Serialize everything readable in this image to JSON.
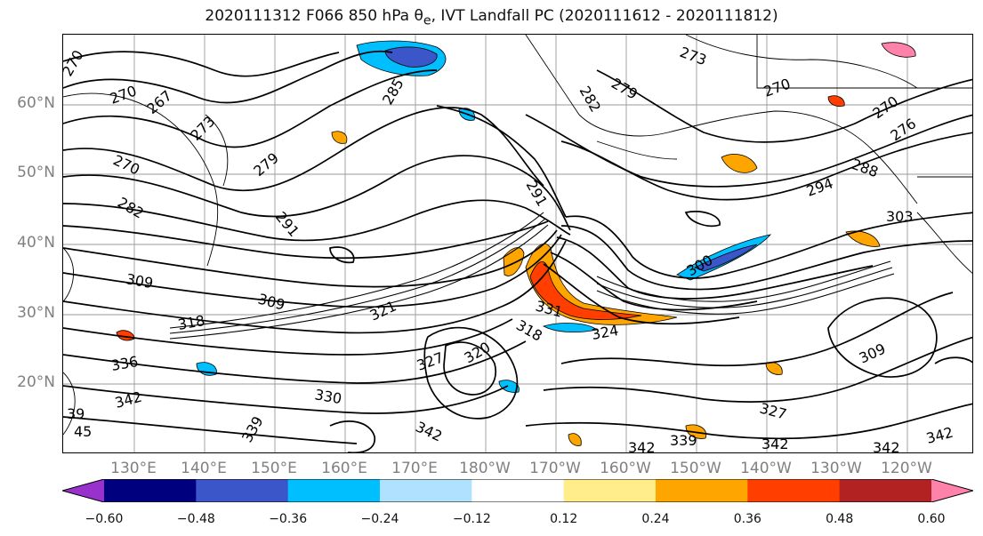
{
  "title_main": "2020111312 F066 850 hPa θ",
  "title_sub": "e",
  "title_rest": ", IVT Landfall PC (2020111612 - 2020111812)",
  "lat_labels": [
    "60°N",
    "50°N",
    "40°N",
    "30°N",
    "20°N"
  ],
  "lon_labels": [
    "130°E",
    "140°E",
    "150°E",
    "160°E",
    "170°E",
    "180°W",
    "170°W",
    "160°W",
    "150°W",
    "140°W",
    "130°W",
    "120°W"
  ],
  "colorbar": {
    "colors": [
      "#9932cc",
      "#00007f",
      "#3a56c8",
      "#00bfff",
      "#b0e2ff",
      "#ffffff",
      "#ffec8b",
      "#ffa500",
      "#ff3e00",
      "#b22222",
      "#ff82ab"
    ],
    "bounds": [
      -0.6,
      -0.48,
      -0.36,
      -0.24,
      -0.12,
      0.12,
      0.24,
      0.36,
      0.48,
      0.6
    ],
    "tick_labels": [
      "−0.60",
      "−0.48",
      "−0.36",
      "−0.24",
      "−0.12",
      "0.12",
      "0.24",
      "0.36",
      "0.48",
      "0.60"
    ]
  },
  "contour_labels": [
    "270",
    "270",
    "267",
    "273",
    "270",
    "279",
    "285",
    "282",
    "282",
    "279",
    "273",
    "270",
    "270",
    "276",
    "288",
    "291",
    "294",
    "303",
    "300",
    "291",
    "309",
    "309",
    "318",
    "321",
    "331",
    "318",
    "324",
    "327",
    "320",
    "336",
    "342",
    "330",
    "339",
    "342",
    "342",
    "339",
    "342",
    "342",
    "327",
    "309",
    "342",
    "45",
    "39"
  ]
}
